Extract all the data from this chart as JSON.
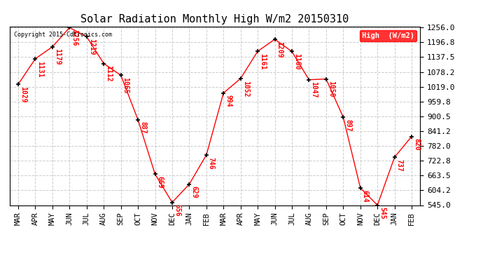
{
  "title": "Solar Radiation Monthly High W/m2 20150310",
  "copyright": "Copyright 2015-Cdtronics.com",
  "legend_label": "High  (W/m2)",
  "months": [
    "MAR",
    "APR",
    "MAY",
    "JUN",
    "JUL",
    "AUG",
    "SEP",
    "OCT",
    "NOV",
    "DEC",
    "JAN",
    "FEB",
    "MAR",
    "APR",
    "MAY",
    "JUN",
    "JUL",
    "AUG",
    "SEP",
    "OCT",
    "NOV",
    "DEC",
    "JAN",
    "FEB"
  ],
  "values": [
    1029,
    1131,
    1179,
    1256,
    1219,
    1112,
    1065,
    887,
    669,
    556,
    629,
    746,
    994,
    1052,
    1161,
    1209,
    1160,
    1047,
    1050,
    897,
    614,
    545,
    737,
    820
  ],
  "line_color": "red",
  "marker_color": "black",
  "label_color": "red",
  "grid_color": "#cccccc",
  "background_color": "white",
  "ylim": [
    545.0,
    1256.0
  ],
  "yticks": [
    545.0,
    604.2,
    663.5,
    722.8,
    782.0,
    841.2,
    900.5,
    959.8,
    1019.0,
    1078.2,
    1137.5,
    1196.8,
    1256.0
  ],
  "title_fontsize": 11,
  "label_fontsize": 7,
  "tick_fontsize": 7.5,
  "ytick_fontsize": 8
}
